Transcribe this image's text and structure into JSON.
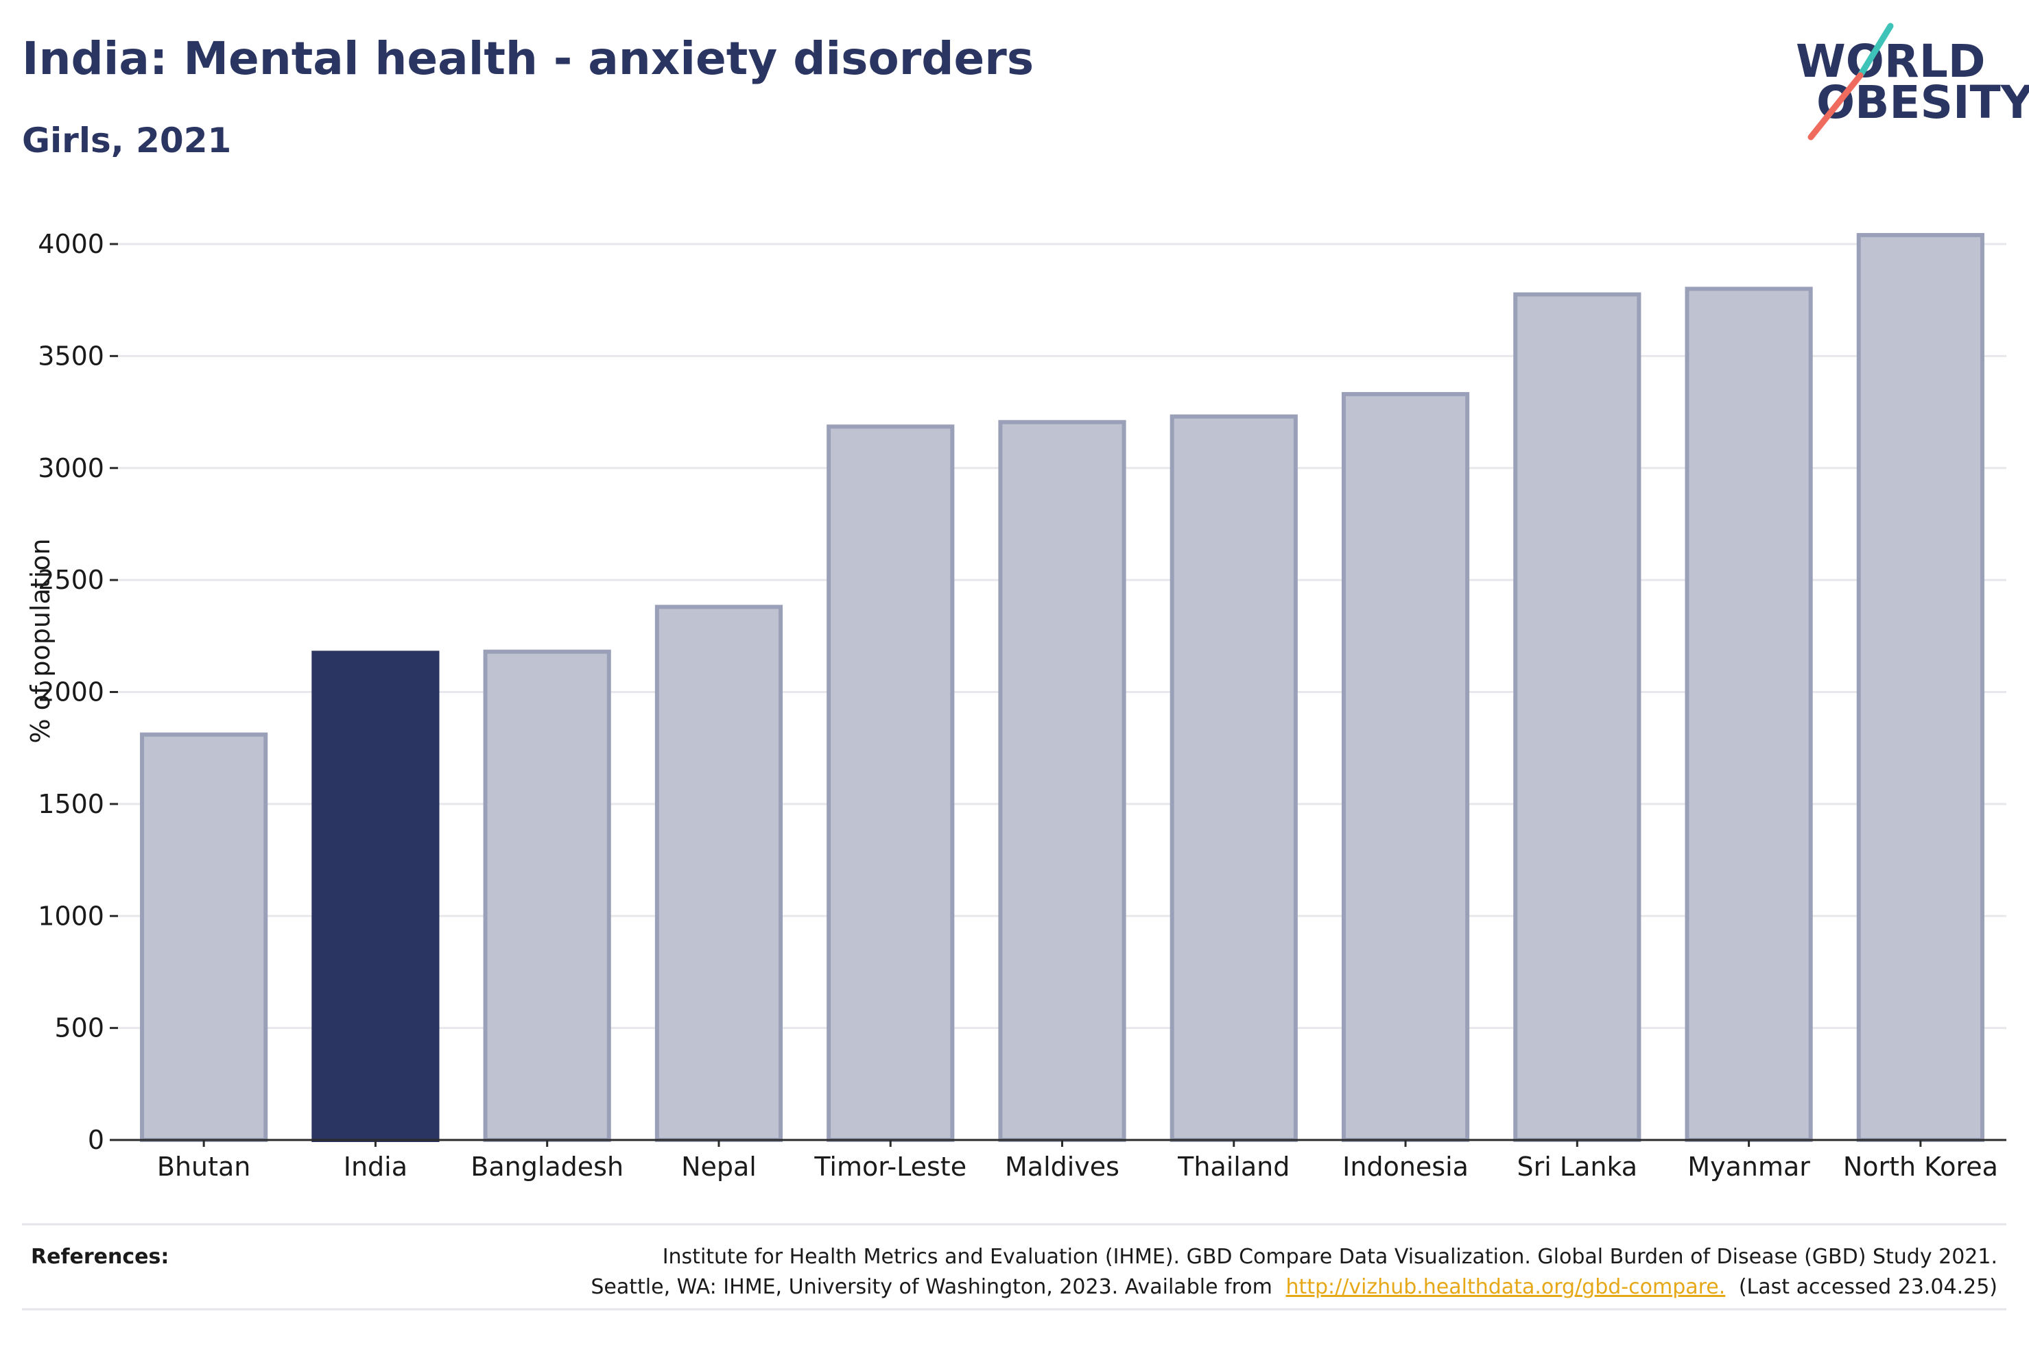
{
  "title": "India: Mental health - anxiety disorders",
  "subtitle": "Girls, 2021",
  "logo": {
    "line1": "WORLD",
    "line2": "OBESITY"
  },
  "colors": {
    "highlight": "#2a3561",
    "bar": "#bfc3d1",
    "bar_stroke": "#9aa0b8",
    "grid": "#e8e8ec",
    "logo_text": "#2a3561",
    "logo_teal": "#3ec3b8",
    "logo_coral": "#ef6b5d"
  },
  "chart_data": {
    "type": "bar",
    "categories": [
      "Bhutan",
      "India",
      "Bangladesh",
      "Nepal",
      "Timor-Leste",
      "Maldives",
      "Thailand",
      "Indonesia",
      "Sri Lanka",
      "Myanmar",
      "North Korea"
    ],
    "values": [
      1810,
      2175,
      2180,
      2380,
      3185,
      3205,
      3230,
      3330,
      3775,
      3800,
      4040
    ],
    "highlight": "India",
    "ylabel": "% of population",
    "xlabel": "",
    "ylim": [
      0,
      4000
    ],
    "yticks": [
      0,
      500,
      1000,
      1500,
      2000,
      2500,
      3000,
      3500,
      4000
    ],
    "grid": true
  },
  "references": {
    "label": "References:",
    "line1": "Institute for Health Metrics and Evaluation (IHME). GBD Compare Data Visualization. Global Burden of Disease (GBD) Study 2021.",
    "line2_prefix": "Seattle, WA: IHME, University of Washington, 2023. Available from",
    "link": "http://vizhub.healthdata.org/gbd-compare.",
    "line2_suffix": "(Last accessed 23.04.25)"
  }
}
